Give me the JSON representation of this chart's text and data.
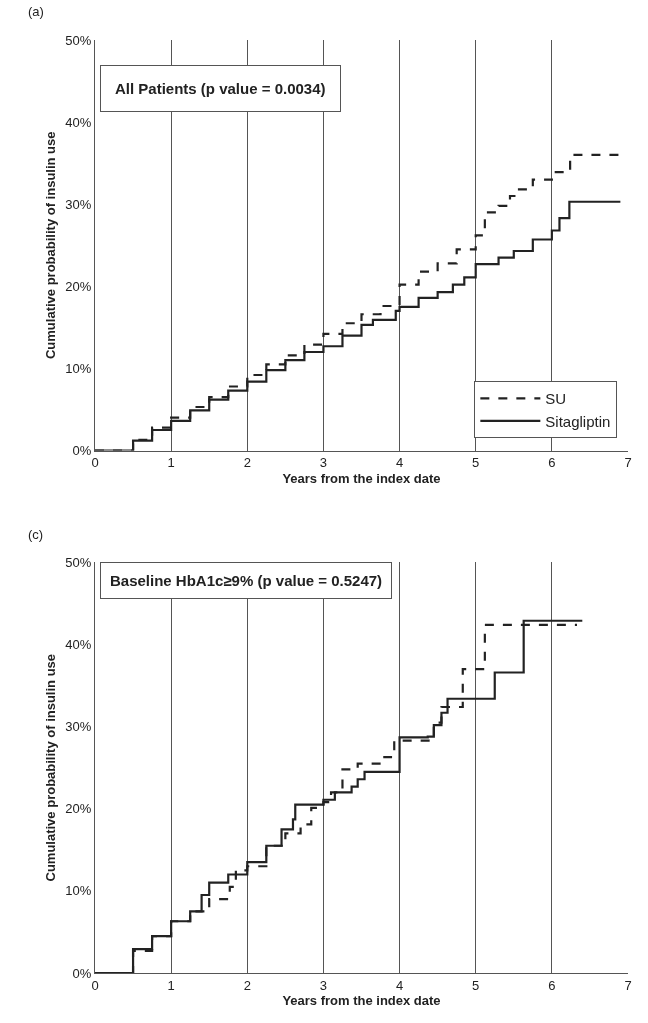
{
  "chart_data": [
    {
      "type": "step",
      "annotations": [
        "(a)",
        "All Patients (p value = 0.0034)"
      ],
      "xlabel": "Years from the index date",
      "ylabel": "Cumulative probability of insulin use",
      "xlim": [
        0,
        7
      ],
      "xticks": [
        0,
        1,
        2,
        3,
        4,
        5,
        6,
        7
      ],
      "ylim": [
        0,
        50
      ],
      "yticks": [
        {
          "value": 0,
          "label": "0%"
        },
        {
          "value": 10,
          "label": "10%"
        },
        {
          "value": 20,
          "label": "20%"
        },
        {
          "value": 30,
          "label": "30%"
        },
        {
          "value": 40,
          "label": "40%"
        },
        {
          "value": 50,
          "label": "50%"
        }
      ],
      "grid": "x",
      "legend": "bottom right",
      "series": [
        {
          "name": "SU",
          "color": "#222222",
          "line_style": "dashed",
          "x": [
            0,
            0.25,
            0.5,
            0.75,
            1,
            1.25,
            1.5,
            1.75,
            2,
            2.25,
            2.5,
            2.75,
            3,
            3.25,
            3.5,
            3.75,
            4,
            4.25,
            4.5,
            4.75,
            5,
            5.08,
            5.12,
            5.3,
            5.45,
            5.55,
            5.75,
            6,
            6.22,
            6.24,
            6.9
          ],
          "values": [
            0,
            0,
            1.3,
            2.8,
            4.0,
            5.3,
            6.5,
            7.8,
            9.2,
            10.5,
            11.6,
            12.9,
            14.2,
            15.5,
            16.6,
            17.6,
            20.2,
            21.8,
            22.8,
            24.5,
            26.2,
            26.2,
            29.0,
            29.8,
            31.0,
            31.8,
            33.0,
            33.9,
            33.9,
            36.0,
            36.0
          ]
        },
        {
          "name": "Sitagliptin",
          "color": "#222222",
          "line_style": "solid",
          "x": [
            0,
            0.25,
            0.5,
            0.75,
            1,
            1.25,
            1.5,
            1.75,
            2,
            2.25,
            2.5,
            2.75,
            3,
            3.25,
            3.5,
            3.65,
            3.85,
            3.95,
            4,
            4.25,
            4.5,
            4.7,
            4.85,
            5,
            5.25,
            5.3,
            5.5,
            5.75,
            6,
            6.1,
            6.2,
            6.23,
            6.9
          ],
          "values": [
            0,
            0,
            1.2,
            2.5,
            3.6,
            4.9,
            6.2,
            7.3,
            8.4,
            9.8,
            11.0,
            12.0,
            12.7,
            14.0,
            15.3,
            15.9,
            15.9,
            17.0,
            17.5,
            18.6,
            19.3,
            20.2,
            21.1,
            22.7,
            22.7,
            23.5,
            24.3,
            25.7,
            26.8,
            28.3,
            28.3,
            30.3,
            30.3
          ]
        }
      ]
    },
    {
      "type": "step",
      "annotations": [
        "(c)",
        "Baseline HbA1c≥9% (p value = 0.5247)"
      ],
      "xlabel": "Years from the index date",
      "ylabel": "Cumulative probability of insulin use",
      "xlim": [
        0,
        7
      ],
      "xticks": [
        0,
        1,
        2,
        3,
        4,
        5,
        6,
        7
      ],
      "ylim": [
        0,
        50
      ],
      "yticks": [
        {
          "value": 0,
          "label": "0%"
        },
        {
          "value": 10,
          "label": "10%"
        },
        {
          "value": 20,
          "label": "20%"
        },
        {
          "value": 30,
          "label": "30%"
        },
        {
          "value": 40,
          "label": "40%"
        },
        {
          "value": 50,
          "label": "50%"
        }
      ],
      "grid": "x",
      "series": [
        {
          "color": "#222222",
          "line_style": "dashed",
          "x": [
            0,
            0.3,
            0.5,
            0.75,
            1,
            1.25,
            1.5,
            1.77,
            1.85,
            2,
            2.25,
            2.5,
            2.7,
            2.84,
            3,
            3.1,
            3.25,
            3.45,
            3.8,
            3.93,
            4.35,
            4.45,
            4.55,
            4.83,
            5.12,
            6.33
          ],
          "values": [
            0,
            0,
            2.7,
            4.5,
            6.3,
            7.5,
            9.0,
            10.5,
            12.5,
            13.0,
            15.5,
            17.0,
            18.1,
            20.1,
            20.8,
            22.0,
            24.8,
            25.5,
            26.3,
            28.3,
            28.3,
            30.5,
            32.4,
            37.0,
            42.4,
            42.4
          ]
        },
        {
          "color": "#222222",
          "line_style": "solid",
          "x": [
            0,
            0.27,
            0.5,
            0.75,
            1,
            1.25,
            1.4,
            1.5,
            1.75,
            2,
            2.25,
            2.45,
            2.6,
            2.63,
            3,
            3.15,
            3.37,
            3.45,
            3.54,
            3.95,
            4,
            4.37,
            4.45,
            4.55,
            4.63,
            5.25,
            5.63,
            6.4
          ],
          "values": [
            0,
            0,
            2.9,
            4.5,
            6.3,
            7.5,
            9.5,
            11.0,
            12.0,
            13.5,
            15.5,
            17.5,
            18.7,
            20.5,
            21.1,
            22.0,
            22.7,
            23.6,
            24.5,
            24.5,
            28.7,
            28.8,
            30.2,
            31.7,
            33.4,
            36.6,
            42.9,
            42.9
          ]
        }
      ]
    }
  ]
}
